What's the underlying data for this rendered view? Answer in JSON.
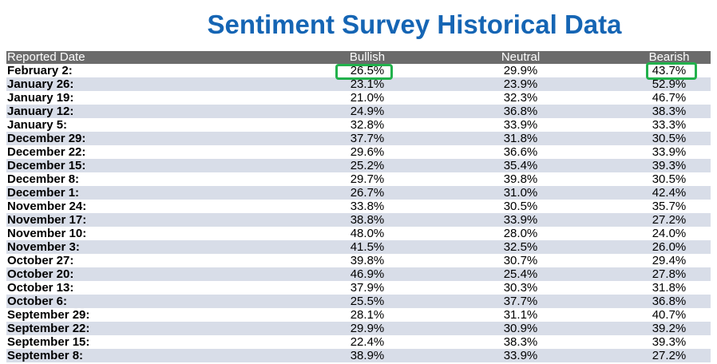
{
  "title": "Sentiment Survey Historical Data",
  "headers": {
    "date": "Reported Date",
    "bullish": "Bullish",
    "neutral": "Neutral",
    "bearish": "Bearish"
  },
  "colors": {
    "title": "#1565b4",
    "header_bg": "#6b6b6b",
    "stripe": "#d8dde8",
    "highlight": "#22b14c"
  },
  "rows": [
    {
      "date": "February 2:",
      "bullish": "26.5%",
      "neutral": "29.9%",
      "bearish": "43.7%"
    },
    {
      "date": "January 26:",
      "bullish": "23.1%",
      "neutral": "23.9%",
      "bearish": "52.9%"
    },
    {
      "date": "January 19:",
      "bullish": "21.0%",
      "neutral": "32.3%",
      "bearish": "46.7%"
    },
    {
      "date": "January 12:",
      "bullish": "24.9%",
      "neutral": "36.8%",
      "bearish": "38.3%"
    },
    {
      "date": "January 5:",
      "bullish": "32.8%",
      "neutral": "33.9%",
      "bearish": "33.3%"
    },
    {
      "date": "December 29:",
      "bullish": "37.7%",
      "neutral": "31.8%",
      "bearish": "30.5%"
    },
    {
      "date": "December 22:",
      "bullish": "29.6%",
      "neutral": "36.6%",
      "bearish": "33.9%"
    },
    {
      "date": "December 15:",
      "bullish": "25.2%",
      "neutral": "35.4%",
      "bearish": "39.3%"
    },
    {
      "date": "December 8:",
      "bullish": "29.7%",
      "neutral": "39.8%",
      "bearish": "30.5%"
    },
    {
      "date": "December 1:",
      "bullish": "26.7%",
      "neutral": "31.0%",
      "bearish": "42.4%"
    },
    {
      "date": "November 24:",
      "bullish": "33.8%",
      "neutral": "30.5%",
      "bearish": "35.7%"
    },
    {
      "date": "November 17:",
      "bullish": "38.8%",
      "neutral": "33.9%",
      "bearish": "27.2%"
    },
    {
      "date": "November 10:",
      "bullish": "48.0%",
      "neutral": "28.0%",
      "bearish": "24.0%"
    },
    {
      "date": "November 3:",
      "bullish": "41.5%",
      "neutral": "32.5%",
      "bearish": "26.0%"
    },
    {
      "date": "October 27:",
      "bullish": "39.8%",
      "neutral": "30.7%",
      "bearish": "29.4%"
    },
    {
      "date": "October 20:",
      "bullish": "46.9%",
      "neutral": "25.4%",
      "bearish": "27.8%"
    },
    {
      "date": "October 13:",
      "bullish": "37.9%",
      "neutral": "30.3%",
      "bearish": "31.8%"
    },
    {
      "date": "October 6:",
      "bullish": "25.5%",
      "neutral": "37.7%",
      "bearish": "36.8%"
    },
    {
      "date": "September 29:",
      "bullish": "28.1%",
      "neutral": "31.1%",
      "bearish": "40.7%"
    },
    {
      "date": "September 22:",
      "bullish": "29.9%",
      "neutral": "30.9%",
      "bearish": "39.2%"
    },
    {
      "date": "September 15:",
      "bullish": "22.4%",
      "neutral": "38.3%",
      "bearish": "39.3%"
    },
    {
      "date": "September 8:",
      "bullish": "38.9%",
      "neutral": "33.9%",
      "bearish": "27.2%"
    }
  ]
}
